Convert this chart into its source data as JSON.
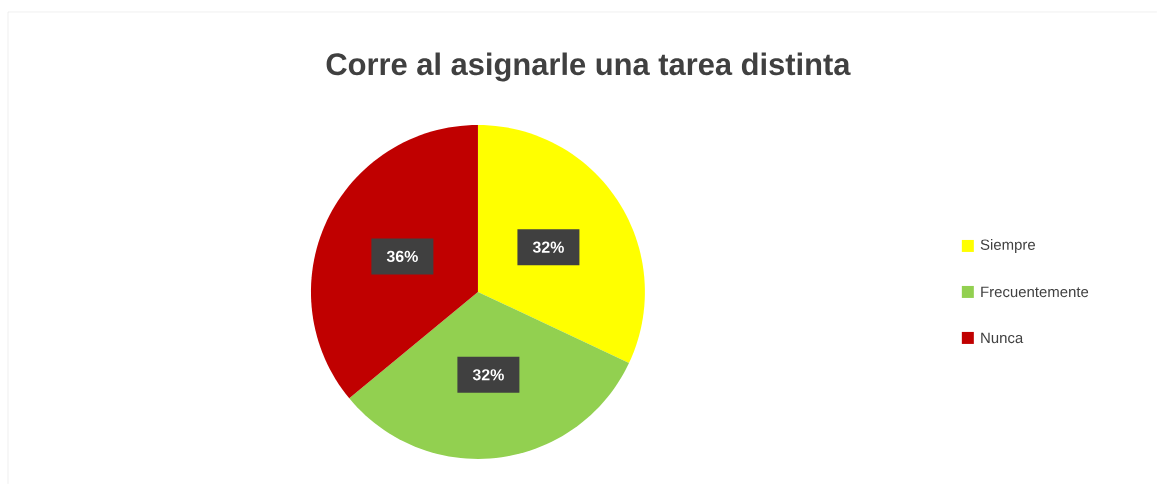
{
  "chart_data": {
    "type": "pie",
    "title": "Corre al asignarle una tarea distinta",
    "categories": [
      "Siempre",
      "Frecuentemente",
      "Nunca"
    ],
    "values": [
      32,
      32,
      36
    ],
    "colors": [
      "#ffff00",
      "#92d050",
      "#c00000"
    ],
    "value_labels": [
      "32%",
      "32%",
      "36%"
    ],
    "legend": "right"
  }
}
